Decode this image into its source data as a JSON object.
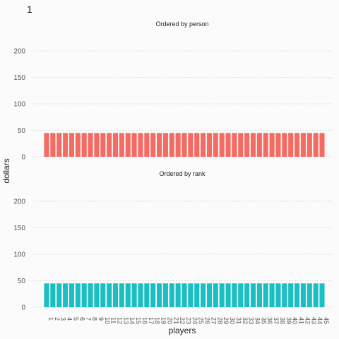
{
  "frame_label": "1",
  "chart_data": {
    "type": "bar",
    "xlabel": "players",
    "ylabel": "dollars",
    "ylim": [
      0,
      220
    ],
    "yticks": [
      0,
      50,
      100,
      150,
      200
    ],
    "grid": true,
    "categories": [
      "1",
      "2",
      "3",
      "4",
      "5",
      "6",
      "7",
      "8",
      "9",
      "10",
      "11",
      "12",
      "13",
      "14",
      "15",
      "16",
      "17",
      "18",
      "19",
      "20",
      "21",
      "22",
      "23",
      "24",
      "25",
      "26",
      "27",
      "28",
      "29",
      "30",
      "31",
      "32",
      "33",
      "34",
      "35",
      "36",
      "37",
      "38",
      "39",
      "40",
      "41",
      "42",
      "43",
      "44",
      "45"
    ],
    "panels": [
      {
        "title": "Ordered by person",
        "color": "#f46b64",
        "values": [
          45,
          45,
          45,
          45,
          45,
          45,
          45,
          45,
          45,
          45,
          45,
          45,
          45,
          45,
          45,
          45,
          45,
          45,
          45,
          45,
          45,
          45,
          45,
          45,
          45,
          45,
          45,
          45,
          45,
          45,
          45,
          45,
          45,
          45,
          45,
          45,
          45,
          45,
          45,
          45,
          45,
          45,
          45,
          45,
          45
        ]
      },
      {
        "title": "Ordered by rank",
        "color": "#19bfc2",
        "values": [
          45,
          45,
          45,
          45,
          45,
          45,
          45,
          45,
          45,
          45,
          45,
          45,
          45,
          45,
          45,
          45,
          45,
          45,
          45,
          45,
          45,
          45,
          45,
          45,
          45,
          45,
          45,
          45,
          45,
          45,
          45,
          45,
          45,
          45,
          45,
          45,
          45,
          45,
          45,
          45,
          45,
          45,
          45,
          45,
          45
        ]
      }
    ]
  }
}
